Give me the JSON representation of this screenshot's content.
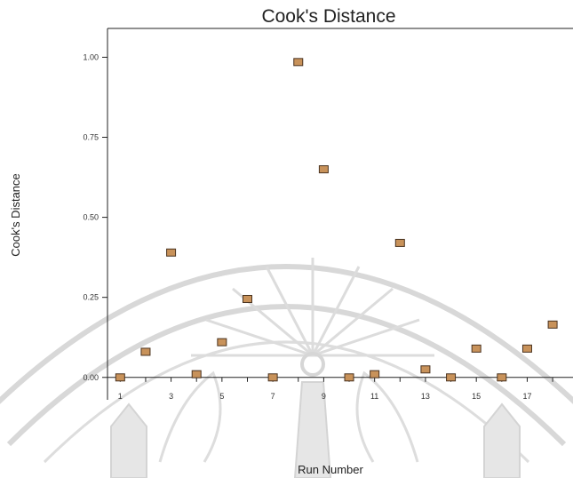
{
  "chart_data": {
    "type": "scatter",
    "title": "Cook's Distance",
    "xlabel": "Run Number",
    "ylabel": "Cook's Distance",
    "xlim": [
      0.5,
      18.8
    ],
    "ylim": [
      -0.07,
      1.09
    ],
    "yticks": [
      "0.00",
      "0.25",
      "0.50",
      "0.75",
      "1.00"
    ],
    "xticks": [
      "1",
      "3",
      "5",
      "7",
      "9",
      "11",
      "13",
      "15",
      "17"
    ],
    "x": [
      1,
      2,
      3,
      4,
      5,
      6,
      7,
      8,
      9,
      10,
      11,
      12,
      13,
      14,
      15,
      16,
      17,
      18
    ],
    "y": [
      0.0,
      0.08,
      0.39,
      0.01,
      0.11,
      0.245,
      0.0,
      0.985,
      0.65,
      0.0,
      0.01,
      0.42,
      0.025,
      0.0,
      0.09,
      0.0,
      0.09,
      0.165
    ],
    "marker_color": "#c8925a",
    "marker_edge": "#4a3320",
    "grid": false
  }
}
